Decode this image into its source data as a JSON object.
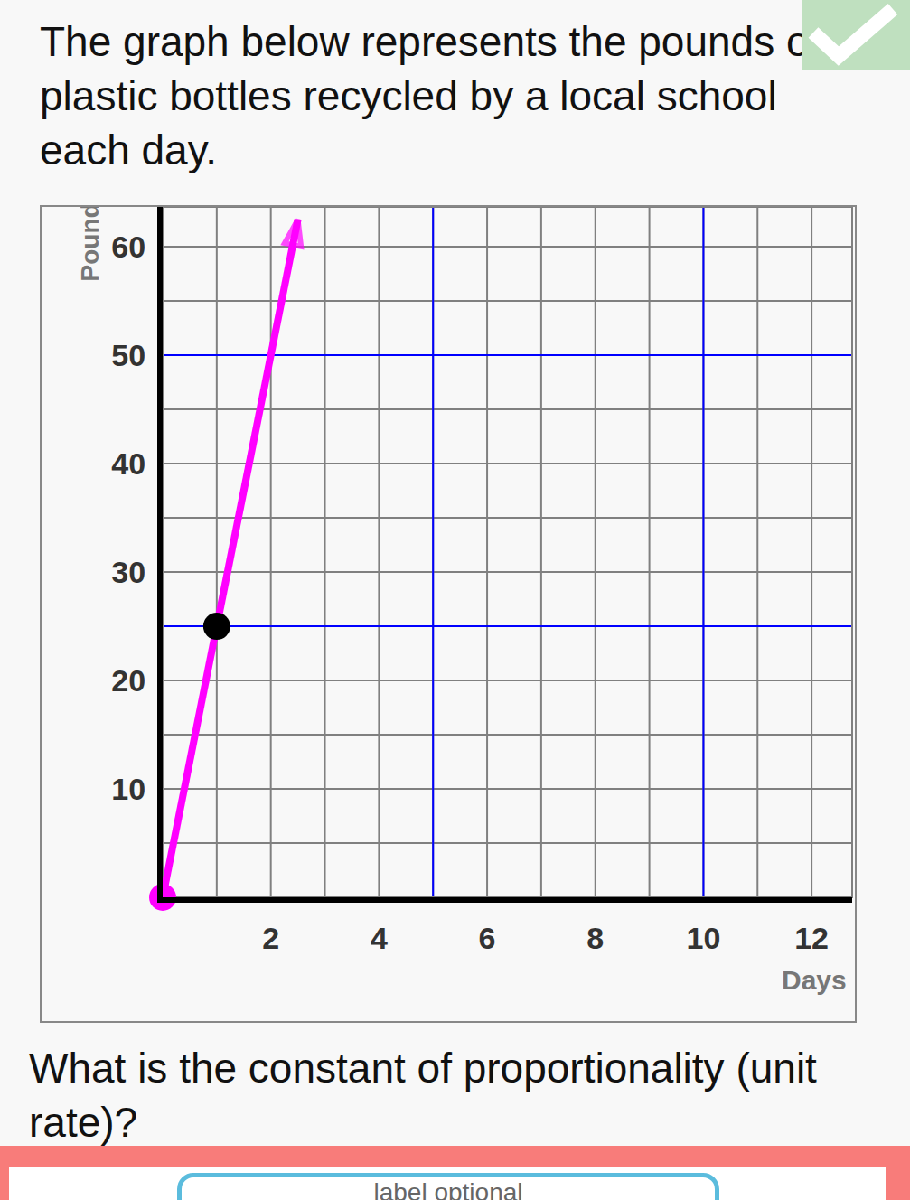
{
  "heading": "The graph below represents the pounds of plastic bottles recycled by a local school each day.",
  "question": "What is the constant of proportionality (unit rate)?",
  "input_placeholder": "label optional",
  "chart_data": {
    "type": "line",
    "x_label": "Days",
    "y_label": "Pounds",
    "xlim": [
      0,
      12.75
    ],
    "ylim": [
      0,
      63.67
    ],
    "xticks": [
      2,
      4,
      6,
      8,
      10,
      12
    ],
    "yticks": [
      10,
      20,
      30,
      40,
      50,
      60
    ],
    "grid": true,
    "x_gridlines": [
      1,
      2,
      3,
      4,
      5,
      6,
      7,
      8,
      9,
      10,
      11,
      12
    ],
    "y_gridlines": [
      5,
      10,
      15,
      20,
      25,
      30,
      35,
      40,
      45,
      50,
      55,
      60
    ],
    "vlines": [
      5,
      10
    ],
    "hlines": [
      25,
      50
    ],
    "series": [
      {
        "type": "line",
        "color": "#ff00ff",
        "marker": "arrow",
        "x": [
          0,
          1,
          2.5
        ],
        "values": [
          0,
          25,
          62.5
        ]
      },
      {
        "type": "scatter",
        "color": "#000000",
        "marker": "circle",
        "x": [
          1
        ],
        "values": [
          25
        ]
      },
      {
        "type": "scatter",
        "color": "#ff00ff",
        "marker": "circle",
        "x": [
          0
        ],
        "values": [
          0
        ]
      }
    ]
  }
}
